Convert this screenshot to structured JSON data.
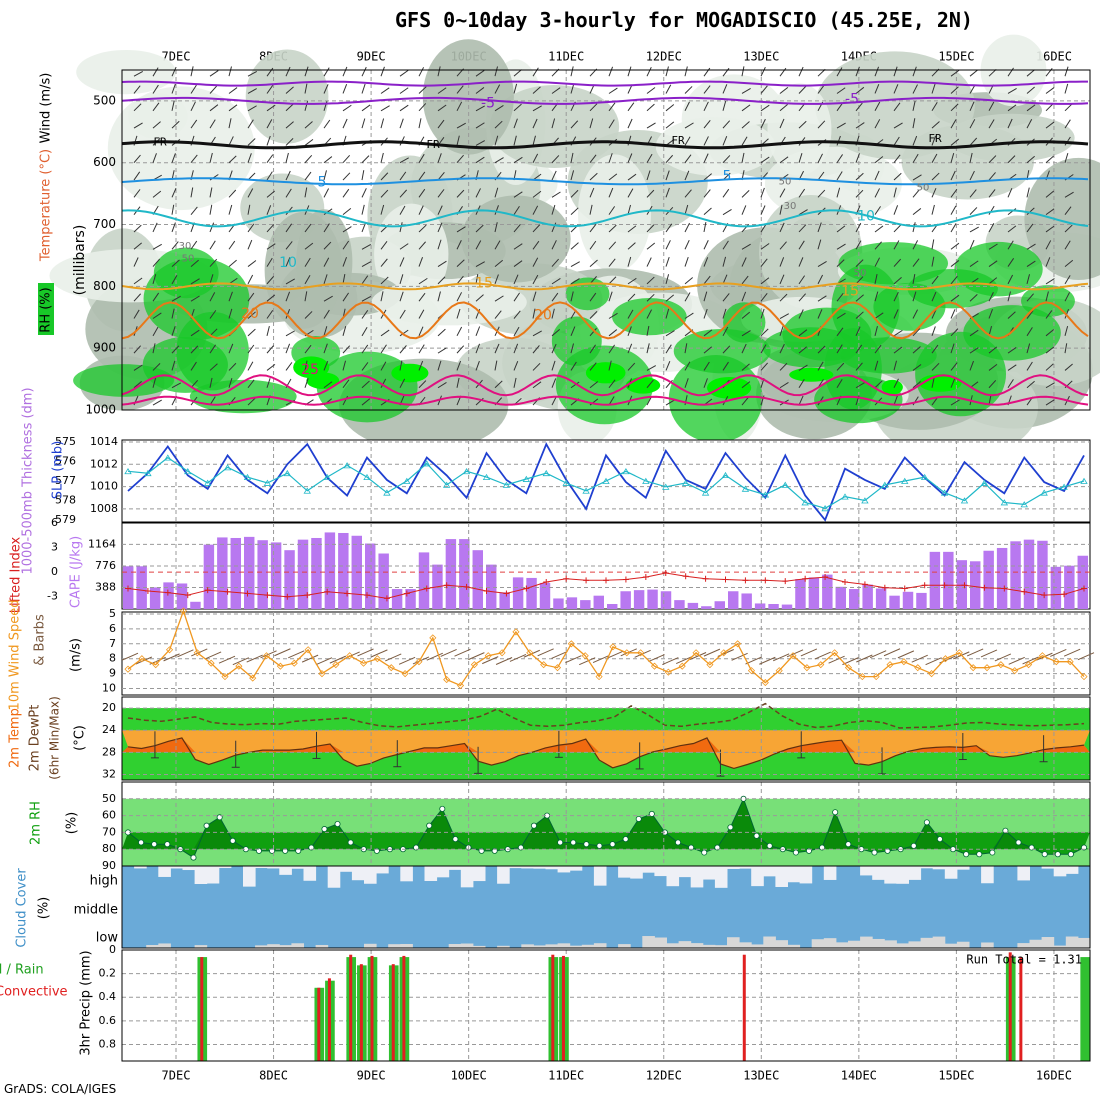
{
  "title": "GFS 0~10day 3-hourly for MOGADISCIO (45.25E, 2N)",
  "credit": "GrADS: COLA/IGES",
  "date_labels": [
    "7DEC",
    "8DEC",
    "9DEC",
    "10DEC",
    "11DEC",
    "12DEC",
    "13DEC",
    "14DEC",
    "15DEC",
    "16DEC"
  ],
  "colors": {
    "rh_green": "#18c828",
    "rh_bright": "#00f000",
    "grid": "#999999",
    "slp": "#1f3fd0",
    "thick": "#20b8c8",
    "cape": "#b878f0",
    "li": "#d82020",
    "speed": "#f09820",
    "temp_fill": "#f7a535",
    "temp_hot": "#f06a10",
    "dew_fill": "#f8f878",
    "rh2_dark": "#10a010",
    "cloud": "#6aaad8",
    "rain": "#30c030",
    "conv": "#e02020"
  },
  "chart_data": [
    {
      "type": "heatmap",
      "title": "Upper air cross-section",
      "ylabel_parts": [
        "RH (%)",
        "Temperature (°C)",
        "Wind (m/s)",
        "(millibars)"
      ],
      "y_ticks": [
        500,
        600,
        700,
        800,
        900,
        1000
      ],
      "ylim": [
        1000,
        450
      ],
      "contour_labels": {
        "fr": "FR",
        "temps": [
          "-5",
          "5",
          "10",
          "15",
          "20",
          "25"
        ],
        "rh": [
          "30",
          "50"
        ]
      },
      "levels_mb": {
        "-5": 500,
        "FR": 577,
        "5": 630,
        "10": 690,
        "15": 800,
        "20": 855,
        "25": 960
      }
    },
    {
      "type": "line",
      "ylabels": [
        "1000-500mb Thickness (dm)",
        "SLP (mb)"
      ],
      "left_ticks": [
        575,
        576,
        577,
        578,
        579
      ],
      "right_ticks": [
        1008,
        1010,
        1012,
        1014
      ],
      "series": [
        {
          "name": "SLP (mb)",
          "values": [
            1009.6,
            1011.2,
            1013.6,
            1011.0,
            1009.8,
            1012.8,
            1010.6,
            1009.4,
            1012.0,
            1013.8,
            1010.8,
            1009.2,
            1012.6,
            1010.6,
            1009.4,
            1012.6,
            1011.0,
            1009.0,
            1013.0,
            1010.6,
            1009.4,
            1013.8,
            1010.6,
            1008.0,
            1012.8,
            1010.4,
            1009.0,
            1013.2,
            1010.6,
            1009.8,
            1013.0,
            1010.8,
            1009.0,
            1012.8,
            1009.2,
            1007.0,
            1011.6,
            1010.6,
            1009.8,
            1012.6,
            1010.8,
            1009.2,
            1012.2,
            1010.6,
            1009.4,
            1012.6,
            1010.4,
            1009.6,
            1012.8
          ]
        },
        {
          "name": "1000-500mb Thickness (dm)",
          "values": [
            576.5,
            576.6,
            575.8,
            576.5,
            577.1,
            576.3,
            576.8,
            577.1,
            576.6,
            577.5,
            576.8,
            576.2,
            576.8,
            577.6,
            577.0,
            576.1,
            577.2,
            576.5,
            576.8,
            577.2,
            576.9,
            576.6,
            577.1,
            577.5,
            577.0,
            576.5,
            577.0,
            577.3,
            577.1,
            577.6,
            576.7,
            577.4,
            577.7,
            577.2,
            578.1,
            578.4,
            577.8,
            578.0,
            577.2,
            577.0,
            576.8,
            577.6,
            578.0,
            577.1,
            578.1,
            578.2,
            577.6,
            577.3,
            577.0
          ]
        }
      ]
    },
    {
      "type": "bar",
      "ylabels": [
        "Lifted Index",
        "CAPE (J/kg)"
      ],
      "left_ticks": [
        "-3",
        "0",
        "3",
        "6"
      ],
      "right_ticks": [
        388,
        776,
        1164
      ],
      "series": [
        {
          "name": "CAPE (J/kg)",
          "values": [
            770,
            770,
            390,
            480,
            460,
            130,
            1160,
            1290,
            1280,
            1300,
            1240,
            1200,
            1060,
            1250,
            1280,
            1380,
            1370,
            1320,
            1180,
            1000,
            360,
            360,
            1020,
            800,
            1260,
            1260,
            1060,
            800,
            300,
            570,
            560,
            470,
            190,
            210,
            160,
            240,
            90,
            320,
            340,
            350,
            320,
            160,
            110,
            50,
            140,
            320,
            280,
            100,
            90,
            80,
            540,
            570,
            620,
            400,
            360,
            440,
            370,
            240,
            310,
            290,
            1030,
            1030,
            880,
            860,
            1050,
            1100,
            1220,
            1250,
            1230,
            760,
            780,
            960
          ]
        },
        {
          "name": "Lifted Index",
          "values": [
            -2,
            -2.3,
            -2.5,
            -2.8,
            -2.2,
            -2.4,
            -2.6,
            -2.8,
            -3.0,
            -2.8,
            -2.4,
            -2.6,
            -2.8,
            -3.2,
            -2.6,
            -2.0,
            -1.6,
            -1.8,
            -2.3,
            -2.6,
            -2.0,
            -1.2,
            -0.8,
            -1.0,
            -1.0,
            -0.9,
            -0.6,
            -0.1,
            -0.5,
            -0.8,
            -0.9,
            -1.0,
            -1.0,
            -1.1,
            -0.8,
            -0.6,
            -1.2,
            -1.5,
            -1.9,
            -2.0,
            -1.6,
            -1.6,
            -1.6,
            -1.9,
            -2.0,
            -2.4,
            -2.8,
            -2.7,
            -2.0
          ]
        }
      ]
    },
    {
      "type": "line",
      "ylabels": [
        "10m Wind Speed",
        "& Barbs",
        "(m/s)"
      ],
      "y_ticks": [
        5,
        6,
        7,
        8,
        9,
        10
      ],
      "series": [
        {
          "name": "Speed",
          "values": [
            8.7,
            8.0,
            8.4,
            7.4,
            4.8,
            7.6,
            8.3,
            9.2,
            8.5,
            9.3,
            7.8,
            8.5,
            8.3,
            7.4,
            9.0,
            8.4,
            7.8,
            8.3,
            8.0,
            8.6,
            9.0,
            8.2,
            6.6,
            9.4,
            9.8,
            8.4,
            7.8,
            7.6,
            6.2,
            7.6,
            8.4,
            8.6,
            7.0,
            7.8,
            9.2,
            7.2,
            7.6,
            7.6,
            8.5,
            8.9,
            8.5,
            7.6,
            8.4,
            7.6,
            7.0,
            8.8,
            9.6,
            8.8,
            7.8,
            8.6,
            8.4,
            7.6,
            8.6,
            9.2,
            9.2,
            8.4,
            8.2,
            8.6,
            9.0,
            8.0,
            7.6,
            8.6,
            8.6,
            8.4,
            8.8,
            8.4,
            7.8,
            8.2,
            8.2,
            9.2
          ]
        }
      ]
    },
    {
      "type": "area",
      "ylabels": [
        "2m Temp",
        "2m DewPt",
        "(6hr Min/Max)",
        "(°C)"
      ],
      "y_ticks": [
        20,
        24,
        28,
        32
      ],
      "series": [
        {
          "name": "2m Temp",
          "values": [
            27.0,
            27.3,
            26.8,
            26.0,
            25.4,
            29.3,
            30.2,
            29.4,
            28.5,
            28.0,
            27.6,
            27.6,
            27.6,
            27.4,
            26.9,
            26.5,
            29.3,
            30.5,
            30.0,
            29.0,
            28.4,
            27.8,
            27.2,
            27.2,
            26.8,
            26.4,
            29.6,
            30.3,
            29.7,
            28.6,
            28.0,
            27.2,
            26.7,
            26.4,
            25.6,
            29.4,
            30.8,
            30.1,
            28.8,
            27.9,
            27.4,
            26.8,
            26.4,
            25.4,
            30.1,
            30.9,
            30.2,
            29.4,
            28.3,
            27.4,
            26.8,
            26.4,
            26.0,
            25.8,
            30.0,
            30.3,
            29.7,
            28.6,
            27.8,
            27.3,
            27.1,
            27.0,
            27.1,
            26.8,
            28.6,
            28.9,
            28.6,
            28.1,
            27.5,
            27.2,
            27.0,
            26.7
          ]
        },
        {
          "name": "2m DewPt",
          "values": [
            21.8,
            22.2,
            22.4,
            22.0,
            21.6,
            22.6,
            22.9,
            23.0,
            22.8,
            22.9,
            22.4,
            22.2,
            22.0,
            21.8,
            22.6,
            23.2,
            23.4,
            23.1,
            22.8,
            22.5,
            22.2,
            21.5,
            20.2,
            21.8,
            23.1,
            23.3,
            23.1,
            22.6,
            22.3,
            21.6,
            19.6,
            21.2,
            23.1,
            23.3,
            22.9,
            22.6,
            22.2,
            20.8,
            19.2,
            21.4,
            22.9,
            23.5,
            23.3,
            22.6,
            22.3,
            22.6,
            23.6,
            23.5,
            23.4,
            23.1,
            22.7,
            22.6,
            22.9,
            23.1,
            23.2,
            23.1,
            23.0,
            22.8
          ]
        }
      ]
    },
    {
      "type": "area",
      "ylabels": [
        "2m RH",
        "(%)"
      ],
      "y_ticks": [
        50,
        60,
        70,
        80,
        90
      ],
      "series": [
        {
          "name": "2m RH",
          "values": [
            70,
            76,
            77,
            77,
            80,
            85,
            66,
            61,
            75,
            80,
            81,
            81,
            81,
            81,
            79,
            68,
            65,
            76,
            80,
            81,
            80,
            80,
            79,
            66,
            56,
            74,
            79,
            81,
            81,
            80,
            79,
            66,
            60,
            76,
            76,
            77,
            78,
            77,
            74,
            62,
            59,
            70,
            76,
            79,
            82,
            79,
            67,
            50,
            72,
            78,
            80,
            82,
            81,
            79,
            58,
            77,
            80,
            82,
            81,
            80,
            78,
            64,
            74,
            80,
            83,
            83,
            82,
            69,
            76,
            79,
            83,
            83,
            83,
            79
          ]
        }
      ]
    },
    {
      "type": "bar",
      "ylabels": [
        "Cloud Cover",
        "(%)"
      ],
      "row_labels": [
        "high",
        "middle",
        "low"
      ]
    },
    {
      "type": "bar",
      "ylabels": [
        "Total / Rain",
        "Convective",
        "3hr Precip (mm)"
      ],
      "y_ticks": [
        0,
        0.2,
        0.4,
        0.6,
        0.8
      ],
      "run_total_label": "Run Total = 1.31",
      "series": [
        {
          "name": "Total / Rain",
          "values": [
            0,
            0,
            0,
            0,
            0,
            0,
            0,
            0.06,
            0,
            0,
            0,
            0,
            0,
            0,
            0,
            0,
            0,
            0,
            0.32,
            0.26,
            0,
            0.06,
            0.13,
            0.06,
            0,
            0.13,
            0.06,
            0,
            0,
            0,
            0,
            0,
            0,
            0,
            0,
            0,
            0,
            0,
            0,
            0,
            0.06,
            0.06,
            0,
            0,
            0,
            0,
            0,
            0,
            0,
            0,
            0,
            0,
            0,
            0,
            0,
            0,
            0,
            0,
            0,
            0,
            0,
            0,
            0,
            0,
            0,
            0,
            0,
            0,
            0,
            0,
            0,
            0,
            0,
            0,
            0,
            0,
            0,
            0,
            0,
            0,
            0,
            0,
            0,
            0.06,
            0,
            0,
            0,
            0,
            0,
            0,
            0.06
          ]
        },
        {
          "name": "Convective",
          "values": [
            0,
            0,
            0,
            0,
            0,
            0,
            0,
            0.06,
            0,
            0,
            0,
            0,
            0,
            0,
            0,
            0,
            0,
            0,
            0.32,
            0.24,
            0,
            0.04,
            0.12,
            0.05,
            0,
            0.12,
            0.05,
            0,
            0,
            0,
            0,
            0,
            0,
            0,
            0,
            0,
            0,
            0,
            0,
            0,
            0.04,
            0.05,
            0,
            0,
            0,
            0,
            0,
            0,
            0,
            0,
            0,
            0,
            0,
            0,
            0,
            0,
            0,
            0,
            0.04,
            0,
            0,
            0,
            0,
            0,
            0,
            0,
            0,
            0,
            0,
            0,
            0,
            0,
            0,
            0,
            0,
            0,
            0,
            0,
            0,
            0,
            0,
            0,
            0,
            0.02,
            0.06,
            0,
            0,
            0,
            0,
            0,
            0
          ]
        }
      ]
    }
  ]
}
